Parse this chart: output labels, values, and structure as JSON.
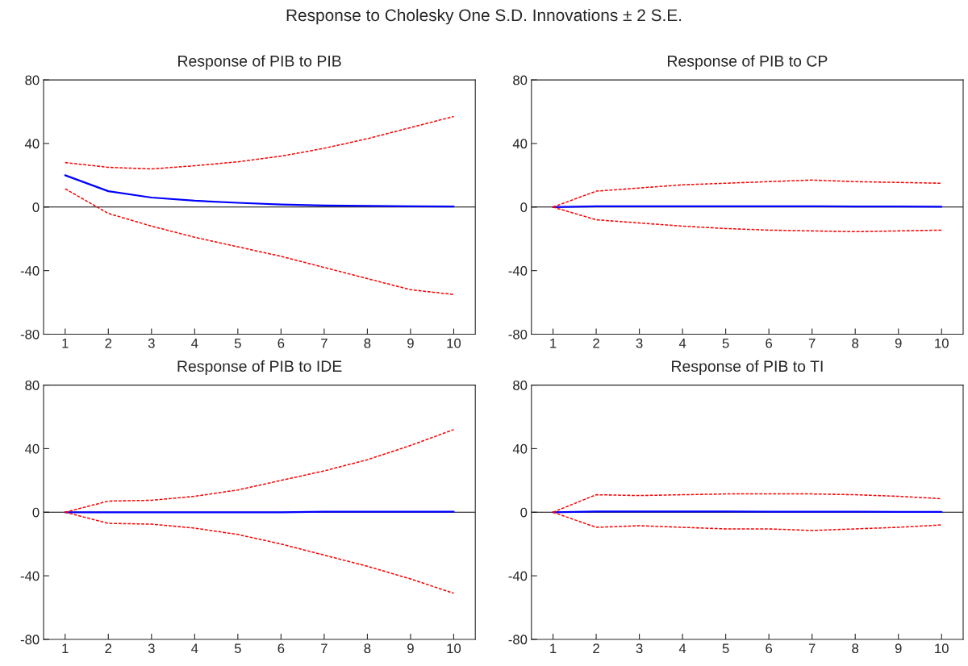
{
  "chart_data": [
    {
      "type": "line",
      "title": "Response of PIB to PIB",
      "x": [
        1,
        2,
        3,
        4,
        5,
        6,
        7,
        8,
        9,
        10
      ],
      "xlim": [
        0.5,
        10.5
      ],
      "xticks": [
        1,
        2,
        3,
        4,
        5,
        6,
        7,
        8,
        9,
        10
      ],
      "ylim": [
        -80,
        80
      ],
      "yticks": [
        -80,
        -40,
        0,
        40,
        80
      ],
      "grid": false,
      "legend": false,
      "ref_lines": [
        {
          "axis": "y",
          "value": 0,
          "color": "#000000"
        }
      ],
      "annotations": [
        "Response to Cholesky One S.D. Innovations ± 2 S.E."
      ],
      "series": [
        {
          "color": "#0000ff",
          "line_style": "solid",
          "values": [
            20,
            10,
            6,
            4,
            2.7,
            1.6,
            1,
            0.7,
            0.5,
            0.4
          ]
        },
        {
          "color": "#ff0000",
          "line_style": "dashed",
          "values": [
            28,
            25,
            24,
            26,
            28.5,
            32,
            37,
            43,
            50,
            57
          ]
        },
        {
          "color": "#ff0000",
          "line_style": "dashed",
          "values": [
            11.5,
            -4,
            -12,
            -19,
            -25,
            -31,
            -38,
            -45,
            -52,
            -55
          ]
        }
      ]
    },
    {
      "type": "line",
      "title": "Response of PIB to CP",
      "x": [
        1,
        2,
        3,
        4,
        5,
        6,
        7,
        8,
        9,
        10
      ],
      "xlim": [
        0.5,
        10.5
      ],
      "xticks": [
        1,
        2,
        3,
        4,
        5,
        6,
        7,
        8,
        9,
        10
      ],
      "ylim": [
        -80,
        80
      ],
      "yticks": [
        -80,
        -40,
        0,
        40,
        80
      ],
      "grid": false,
      "legend": false,
      "ref_lines": [
        {
          "axis": "y",
          "value": 0,
          "color": "#000000"
        }
      ],
      "series": [
        {
          "color": "#0000ff",
          "line_style": "solid",
          "values": [
            0,
            0.5,
            0.5,
            0.5,
            0.5,
            0.5,
            0.5,
            0.3,
            0.3,
            0.2
          ]
        },
        {
          "color": "#ff0000",
          "line_style": "dashed",
          "values": [
            0,
            10,
            12,
            14,
            15,
            16,
            17,
            16,
            15.5,
            15
          ]
        },
        {
          "color": "#ff0000",
          "line_style": "dashed",
          "values": [
            0,
            -8,
            -10,
            -12,
            -13.5,
            -14.5,
            -15,
            -15.5,
            -15,
            -14.5
          ]
        }
      ]
    },
    {
      "type": "line",
      "title": "Response of PIB to IDE",
      "x": [
        1,
        2,
        3,
        4,
        5,
        6,
        7,
        8,
        9,
        10
      ],
      "xlim": [
        0.5,
        10.5
      ],
      "xticks": [
        1,
        2,
        3,
        4,
        5,
        6,
        7,
        8,
        9,
        10
      ],
      "ylim": [
        -80,
        80
      ],
      "yticks": [
        -80,
        -40,
        0,
        40,
        80
      ],
      "grid": false,
      "legend": false,
      "ref_lines": [
        {
          "axis": "y",
          "value": 0,
          "color": "#000000"
        }
      ],
      "series": [
        {
          "color": "#0000ff",
          "line_style": "solid",
          "values": [
            0,
            0,
            0,
            0,
            0,
            0,
            0.3,
            0.3,
            0.3,
            0.3
          ]
        },
        {
          "color": "#ff0000",
          "line_style": "dashed",
          "values": [
            0,
            7,
            7.5,
            10,
            14,
            20,
            26,
            33,
            42,
            52
          ]
        },
        {
          "color": "#ff0000",
          "line_style": "dashed",
          "values": [
            0,
            -7,
            -7.5,
            -10,
            -14,
            -20,
            -27,
            -34,
            -42,
            -51
          ]
        }
      ]
    },
    {
      "type": "line",
      "title": "Response of PIB to TI",
      "x": [
        1,
        2,
        3,
        4,
        5,
        6,
        7,
        8,
        9,
        10
      ],
      "xlim": [
        0.5,
        10.5
      ],
      "xticks": [
        1,
        2,
        3,
        4,
        5,
        6,
        7,
        8,
        9,
        10
      ],
      "ylim": [
        -80,
        80
      ],
      "yticks": [
        -80,
        -40,
        0,
        40,
        80
      ],
      "grid": false,
      "legend": false,
      "ref_lines": [
        {
          "axis": "y",
          "value": 0,
          "color": "#000000"
        }
      ],
      "series": [
        {
          "color": "#0000ff",
          "line_style": "solid",
          "values": [
            0,
            0.5,
            0.5,
            0.5,
            0.5,
            0.3,
            0.3,
            0.3,
            0.2,
            0.2
          ]
        },
        {
          "color": "#ff0000",
          "line_style": "dashed",
          "values": [
            0,
            11,
            10.5,
            11,
            11.5,
            11.5,
            11.5,
            11,
            10,
            8.5
          ]
        },
        {
          "color": "#ff0000",
          "line_style": "dashed",
          "values": [
            0,
            -9.5,
            -8.5,
            -9.5,
            -10.5,
            -10.5,
            -11.5,
            -10.5,
            -9.5,
            -8
          ]
        }
      ]
    }
  ]
}
